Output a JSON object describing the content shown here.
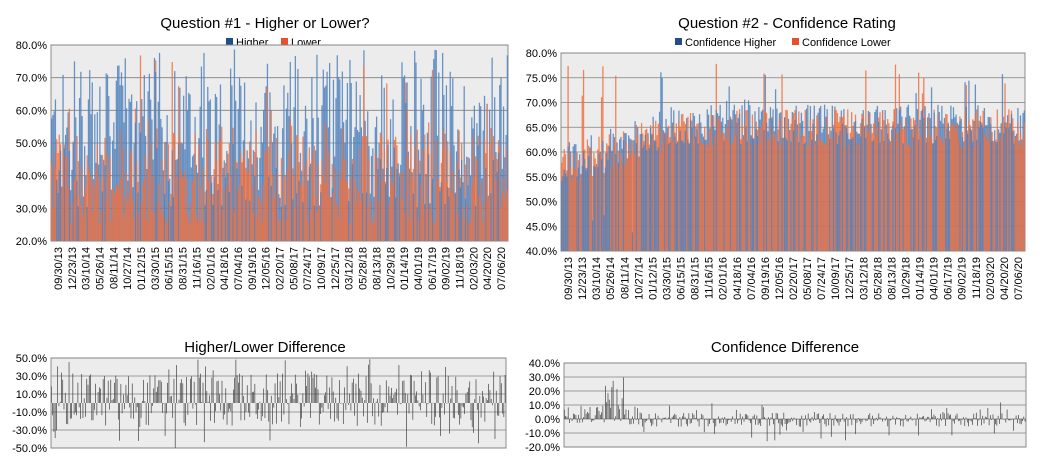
{
  "colors": {
    "higher": "#4f81bd",
    "higher_legend": "#1f4e8c",
    "lower": "#f0703f",
    "lower_legend": "#e8502a",
    "diff": "#404040",
    "plot_bg": "#ececec",
    "grid": "#808080"
  },
  "chart_data": [
    {
      "id": "q1",
      "type": "bar",
      "title": "Question #1 - Higher or Lower?",
      "series": [
        {
          "name": "Higher"
        },
        {
          "name": "Lower"
        }
      ],
      "ylim": [
        0.2,
        0.8
      ],
      "yticks": [
        "20.0%",
        "30.0%",
        "40.0%",
        "50.0%",
        "60.0%",
        "70.0%",
        "80.0%"
      ],
      "xticks": [
        "09/30/13",
        "12/23/13",
        "03/10/14",
        "05/26/14",
        "08/11/14",
        "10/27/14",
        "01/12/15",
        "03/30/15",
        "06/15/15",
        "08/31/15",
        "11/16/15",
        "02/01/16",
        "04/18/16",
        "07/04/16",
        "09/19/16",
        "12/05/16",
        "02/20/17",
        "05/08/17",
        "07/24/17",
        "10/09/17",
        "12/25/17",
        "03/12/18",
        "05/28/18",
        "08/13/18",
        "10/29/18",
        "01/14/19",
        "04/01/19",
        "06/17/19",
        "09/02/19",
        "11/18/19",
        "02/03/20",
        "04/20/20",
        "07/06/20"
      ],
      "legend_position": "top-center",
      "grid": true,
      "n_points": 360,
      "higher_mean": 0.52,
      "higher_spread": 0.12,
      "lower_mean": 0.48
    },
    {
      "id": "q2",
      "type": "bar",
      "title": "Question #2 - Confidence Rating",
      "series": [
        {
          "name": "Confidence Higher"
        },
        {
          "name": "Confidence Lower"
        }
      ],
      "ylim": [
        0.4,
        0.8
      ],
      "yticks": [
        "40.0%",
        "45.0%",
        "50.0%",
        "55.0%",
        "60.0%",
        "65.0%",
        "70.0%",
        "75.0%",
        "80.0%"
      ],
      "xticks": [
        "09/30/13",
        "12/23/13",
        "03/10/14",
        "05/26/14",
        "08/11/14",
        "10/27/14",
        "01/12/15",
        "03/30/15",
        "06/15/15",
        "08/31/15",
        "11/16/15",
        "02/01/16",
        "04/18/16",
        "07/04/16",
        "09/19/16",
        "12/05/16",
        "02/20/17",
        "05/08/17",
        "07/24/17",
        "10/09/17",
        "12/25/17",
        "03/12/18",
        "05/28/18",
        "08/13/18",
        "10/29/18",
        "01/14/19",
        "04/01/19",
        "06/17/19",
        "09/02/19",
        "11/18/19",
        "02/03/20",
        "04/20/20",
        "07/06/20"
      ],
      "legend_position": "top-center",
      "grid": true,
      "n_points": 360
    },
    {
      "id": "d1",
      "type": "bar",
      "title": "Higher/Lower Difference",
      "ylim": [
        -0.5,
        0.5
      ],
      "yticks": [
        "-50.0%",
        "-30.0%",
        "-10.0%",
        "10.0%",
        "30.0%",
        "50.0%"
      ],
      "grid": true,
      "n_points": 360
    },
    {
      "id": "d2",
      "type": "bar",
      "title": "Confidence Difference",
      "ylim": [
        -0.2,
        0.4
      ],
      "yticks": [
        "-20.0%",
        "-10.0%",
        "0.0%",
        "10.0%",
        "20.0%",
        "30.0%",
        "40.0%"
      ],
      "grid": true,
      "n_points": 360
    }
  ]
}
